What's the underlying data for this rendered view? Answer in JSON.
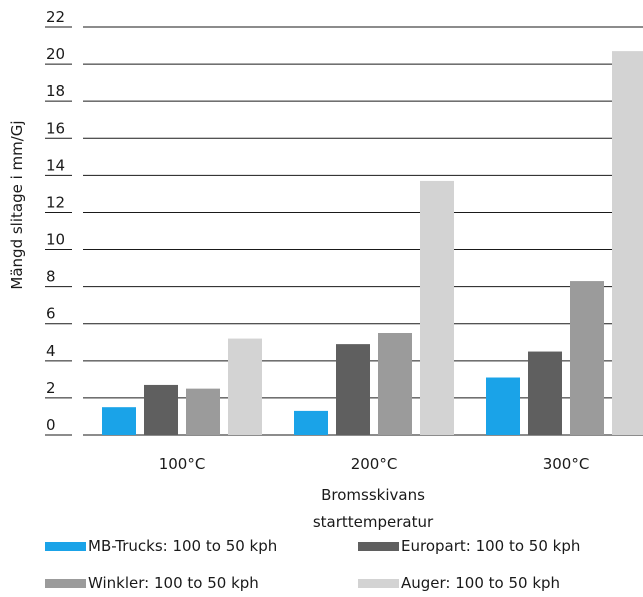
{
  "chart_data": {
    "type": "bar",
    "title": "",
    "ylabel": "Mängd slitage i mm/Gj",
    "xlabel_lines": [
      "Bromsskivans",
      "starttemperatur"
    ],
    "categories": [
      "100°C",
      "200°C",
      "300°C"
    ],
    "ylim": [
      0,
      22
    ],
    "yticks": [
      "0",
      "2",
      "4",
      "6",
      "8",
      "10",
      "12",
      "14",
      "16",
      "18",
      "20",
      "22"
    ],
    "grid": true,
    "legend_position": "bottom",
    "series": [
      {
        "name": "MB-Trucks: 100 to 50 kph",
        "color": "#1aa3e8",
        "values": [
          1.5,
          1.3,
          3.1
        ]
      },
      {
        "name": "Europart: 100 to 50 kph",
        "color": "#5f5f5f",
        "values": [
          2.7,
          4.9,
          4.5
        ]
      },
      {
        "name": "Winkler: 100 to 50 kph",
        "color": "#9b9b9b",
        "values": [
          2.5,
          5.5,
          8.3
        ]
      },
      {
        "name": "Auger: 100 to 50 kph",
        "color": "#d3d3d3",
        "values": [
          5.2,
          13.7,
          20.7
        ]
      }
    ]
  }
}
